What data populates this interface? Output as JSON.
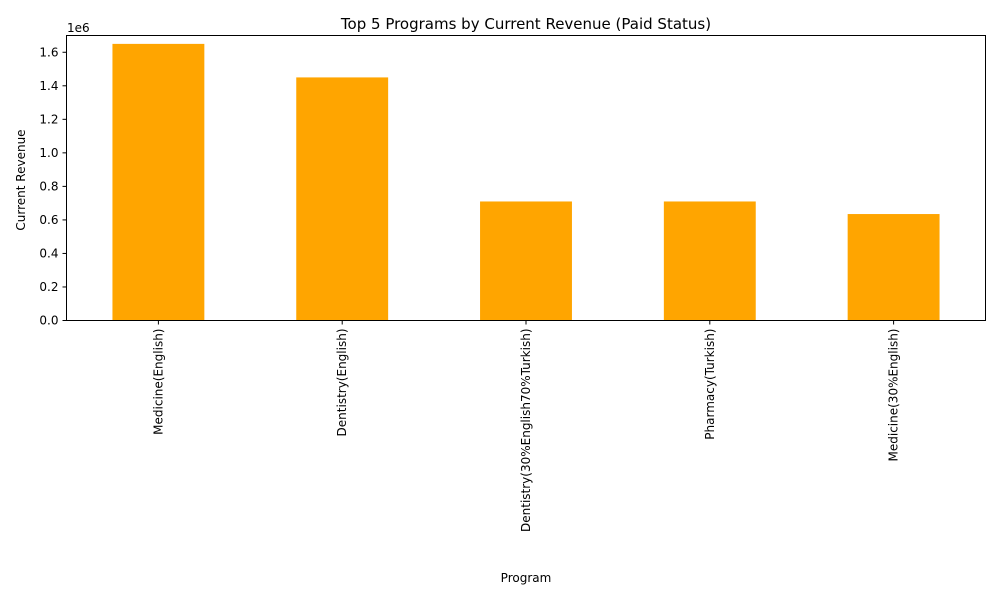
{
  "chart_data": {
    "type": "bar",
    "title": "Top 5 Programs by Current Revenue (Paid Status)",
    "xlabel": "Program",
    "ylabel": "Current Revenue",
    "y_offset_label": "1e6",
    "categories": [
      "Medicine(English)",
      "Dentistry(English)",
      "Dentistry(30%English70%Turkish)",
      "Pharmacy(Turkish)",
      "Medicine(30%English)"
    ],
    "values": [
      1650000,
      1450000,
      710000,
      710000,
      635000
    ],
    "ylim": [
      0,
      1700000
    ],
    "yticks": [
      0,
      200000,
      400000,
      600000,
      800000,
      1000000,
      1200000,
      1400000,
      1600000
    ],
    "ytick_labels": [
      "0.0",
      "0.2",
      "0.4",
      "0.6",
      "0.8",
      "1.0",
      "1.2",
      "1.4",
      "1.6"
    ],
    "bar_color": "#FFA500",
    "grid": false,
    "legend": false
  }
}
